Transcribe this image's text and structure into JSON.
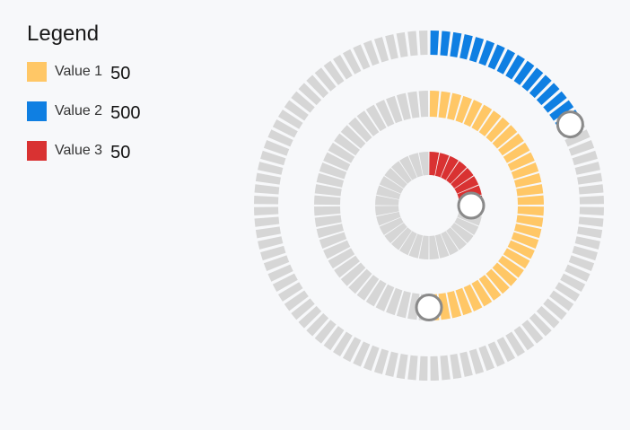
{
  "legend": {
    "title": "Legend",
    "items": [
      {
        "label": "Value 1",
        "value": "50",
        "color": "#ffc766"
      },
      {
        "label": "Value 2",
        "value": "500",
        "color": "#0f7fe2"
      },
      {
        "label": "Value 3",
        "value": "50",
        "color": "#d93232"
      }
    ]
  },
  "chart_data": {
    "type": "radial-progress",
    "track_color": "#d6d6d6",
    "handle_fill": "#ffffff",
    "handle_stroke": "#8a8a8a",
    "series": [
      {
        "name": "Value 2",
        "ring": "outer",
        "fraction": 0.167,
        "color": "#0f7fe2"
      },
      {
        "name": "Value 1",
        "ring": "middle",
        "fraction": 0.5,
        "color": "#ffc766"
      },
      {
        "name": "Value 3",
        "ring": "inner",
        "fraction": 0.25,
        "color": "#d93232"
      }
    ]
  }
}
